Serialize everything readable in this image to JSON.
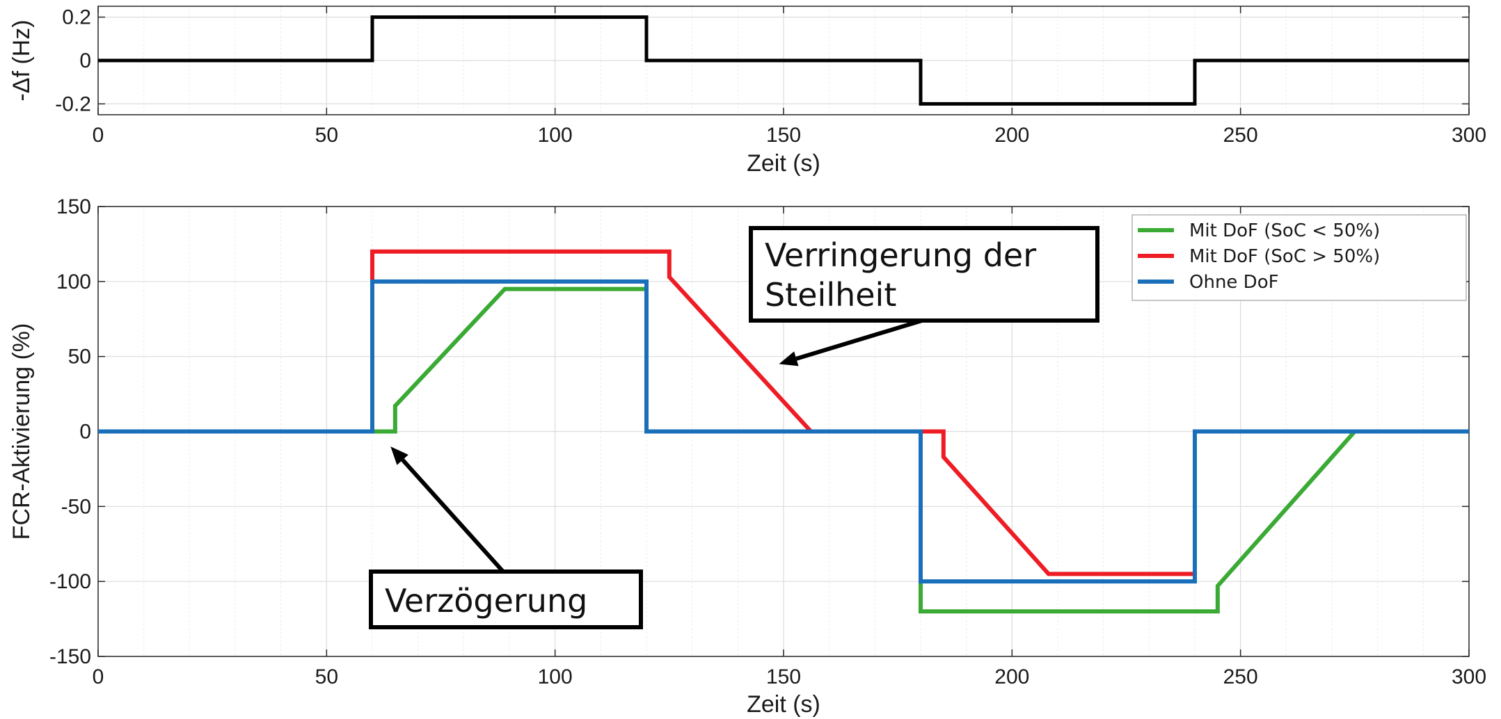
{
  "chart_data": [
    {
      "type": "line",
      "title": "",
      "xlabel": "Zeit (s)",
      "ylabel": "-Δf  (Hz)",
      "xlim": [
        0,
        300
      ],
      "ylim": [
        -0.25,
        0.25
      ],
      "xticks": [
        0,
        50,
        100,
        150,
        200,
        250,
        300
      ],
      "yticks": [
        -0.2,
        0,
        0.2
      ],
      "ytick_labels": [
        "-0.2",
        "0",
        "0.2"
      ],
      "grid": true,
      "series": [
        {
          "color": "#000000",
          "x": [
            0,
            60,
            60,
            120,
            120,
            180,
            180,
            240,
            240,
            300
          ],
          "y": [
            0,
            0,
            0.2,
            0.2,
            0,
            0,
            -0.2,
            -0.2,
            0,
            0
          ]
        }
      ]
    },
    {
      "type": "line",
      "title": "",
      "xlabel": "Zeit (s)",
      "ylabel": "FCR-Aktivierung (%)",
      "xlim": [
        0,
        300
      ],
      "ylim": [
        -150,
        150
      ],
      "xticks": [
        0,
        50,
        100,
        150,
        200,
        250,
        300
      ],
      "yticks": [
        -150,
        -100,
        -50,
        0,
        50,
        100,
        150
      ],
      "grid": true,
      "legend_position": "top-right",
      "series": [
        {
          "name": "Mit DoF (SoC < 50%)",
          "color": "#3aaa35",
          "x": [
            0,
            65,
            65,
            89,
            120,
            120,
            180,
            180,
            245,
            245,
            275,
            300
          ],
          "y": [
            0,
            0,
            17,
            95,
            95,
            0,
            0,
            -120,
            -120,
            -103,
            0,
            0
          ]
        },
        {
          "name": "Mit DoF (SoC > 50%)",
          "color": "#ee1c24",
          "x": [
            0,
            60,
            60,
            125,
            125,
            156,
            180,
            185,
            185,
            208,
            240
          ],
          "y": [
            0,
            0,
            120,
            120,
            103,
            0,
            0,
            0,
            -17,
            -95,
            -95
          ]
        },
        {
          "name": "Ohne DoF",
          "color": "#1a6fba",
          "x": [
            0,
            60,
            60,
            120,
            120,
            180,
            180,
            240,
            240,
            300
          ],
          "y": [
            0,
            0,
            100,
            100,
            0,
            0,
            -100,
            -100,
            0,
            0
          ]
        }
      ],
      "annotations": [
        {
          "lines": [
            "Verringerung der",
            "Steilheit"
          ],
          "arrow_to": {
            "x": 149,
            "y": 45
          }
        },
        {
          "lines": [
            "Verzögerung"
          ],
          "arrow_to": {
            "x": 64,
            "y": -10
          }
        }
      ]
    }
  ]
}
